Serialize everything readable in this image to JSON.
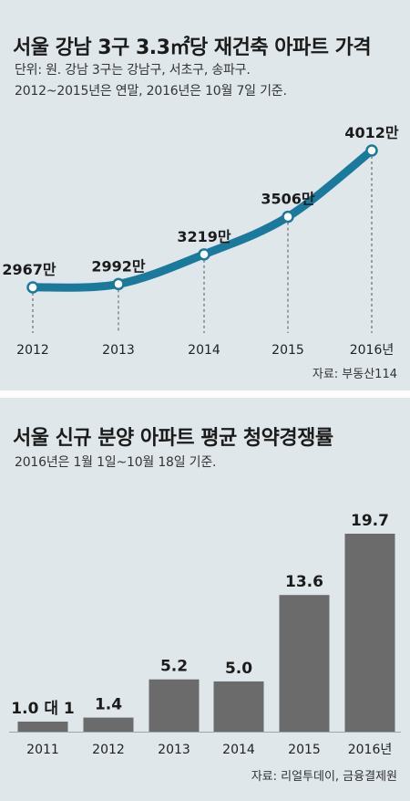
{
  "chart_data": [
    {
      "type": "line",
      "title": "서울 강남 3구 3.3㎡당 재건축 아파트 가격",
      "subtitle_lines": [
        "단위: 원.  강남 3구는 강남구, 서초구, 송파구.",
        "2012~2015년은 연말, 2016년은 10월 7일 기준."
      ],
      "categories": [
        "2012",
        "2013",
        "2014",
        "2015",
        "2016년"
      ],
      "values": [
        2967,
        2992,
        3219,
        3506,
        4012
      ],
      "value_labels": [
        "2967만",
        "2992만",
        "3219만",
        "3506만",
        "4012만"
      ],
      "source": "자료: 부동산114",
      "color": "#1a7a9c"
    },
    {
      "type": "bar",
      "title": "서울 신규 분양 아파트 평균 청약경쟁률",
      "subtitle": "2016년은 1월 1일~10월 18일 기준.",
      "categories": [
        "2011",
        "2012",
        "2013",
        "2014",
        "2015",
        "2016년"
      ],
      "values": [
        1.0,
        1.4,
        5.2,
        5.0,
        13.6,
        19.7
      ],
      "value_labels": [
        "1.0 대 1",
        "1.4",
        "5.2",
        "5.0",
        "13.6",
        "19.7"
      ],
      "source": "자료: 리얼투데이, 금융결제원",
      "color": "#6b6b6b"
    }
  ]
}
